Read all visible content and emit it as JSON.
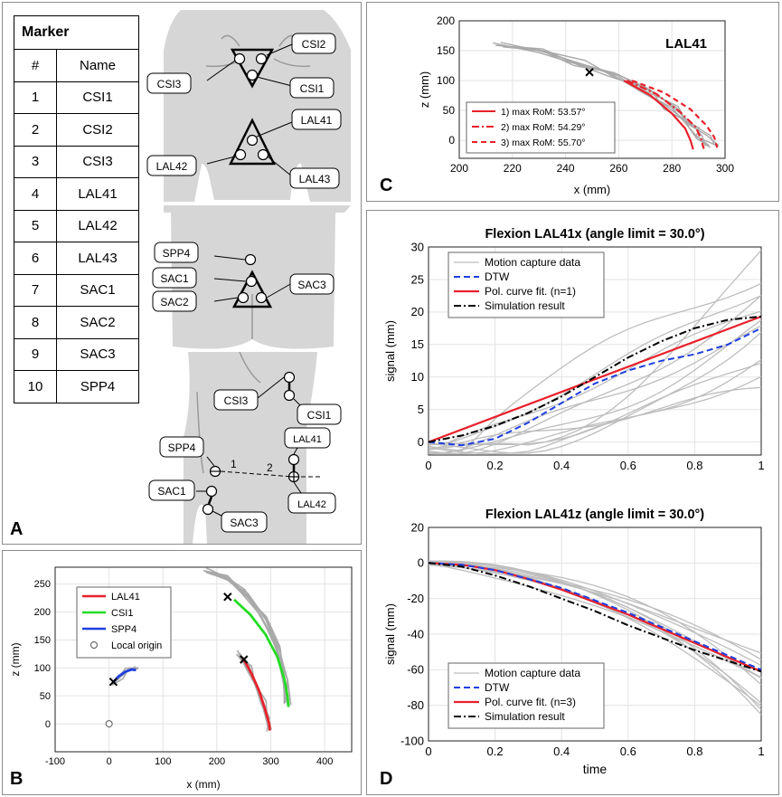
{
  "panel_letters": {
    "a": "A",
    "b": "B",
    "c": "C",
    "d": "D"
  },
  "marker_table": {
    "title": "Marker",
    "col_num": "#",
    "col_name": "Name",
    "rows": [
      {
        "num": "1",
        "name": "CSI1"
      },
      {
        "num": "2",
        "name": "CSI2"
      },
      {
        "num": "3",
        "name": "CSI3"
      },
      {
        "num": "4",
        "name": "LAL41"
      },
      {
        "num": "5",
        "name": "LAL42"
      },
      {
        "num": "6",
        "name": "LAL43"
      },
      {
        "num": "7",
        "name": "SAC1"
      },
      {
        "num": "8",
        "name": "SAC2"
      },
      {
        "num": "9",
        "name": "SAC3"
      },
      {
        "num": "10",
        "name": "SPP4"
      }
    ]
  },
  "body_labels": {
    "front_csi2": "CSI2",
    "front_csi3": "CSI3",
    "front_csi1": "CSI1",
    "front_lal41": "LAL41",
    "front_lal42": "LAL42",
    "front_lal43": "LAL43",
    "back_spp4": "SPP4",
    "back_sac1": "SAC1",
    "back_sac2": "SAC2",
    "back_sac3": "SAC3",
    "side_csi3": "CSI3",
    "side_csi1": "CSI1",
    "side_spp4": "SPP4",
    "side_lal41": "LAL41",
    "side_sac1": "SAC1",
    "side_lal42": "LAL42",
    "side_sac3": "SAC3",
    "line_1": "1",
    "line_2": "2"
  },
  "colors": {
    "red": "#e8202a",
    "green": "#22dd22",
    "blue": "#1f3fe0",
    "gray": "#a9a9a9",
    "skin": "#d6d6d6",
    "dtw": "#1f3fe0",
    "sim": "#000000"
  },
  "chart_data": [
    {
      "id": "B",
      "type": "line",
      "xlabel": "x (mm)",
      "ylabel": "z (mm)",
      "xlim": [
        -100,
        450
      ],
      "ylim": [
        -50,
        280
      ],
      "xticks": [
        -100,
        0,
        100,
        200,
        300,
        400
      ],
      "yticks": [
        0,
        50,
        100,
        150,
        200,
        250
      ],
      "legend": [
        "LAL41",
        "CSI1",
        "SPP4",
        "Local origin"
      ],
      "series": [
        {
          "name": "LAL41",
          "x": [
            250,
            264,
            278,
            288,
            294,
            297,
            298
          ],
          "z": [
            115,
            90,
            60,
            30,
            10,
            0,
            -12
          ]
        },
        {
          "name": "CSI1",
          "x": [
            232,
            262,
            290,
            312,
            325,
            331,
            333
          ],
          "z": [
            222,
            195,
            160,
            120,
            80,
            50,
            30
          ]
        },
        {
          "name": "SPP4",
          "x": [
            8,
            18,
            30,
            42,
            50
          ],
          "z": [
            75,
            85,
            93,
            97,
            96
          ]
        }
      ],
      "origin": [
        0,
        0
      ],
      "start_marks": [
        [
          250,
          115
        ],
        [
          220,
          227
        ],
        [
          8,
          75
        ]
      ]
    },
    {
      "id": "C",
      "type": "line",
      "title": "LAL41",
      "xlabel": "x (mm)",
      "ylabel": "z (mm)",
      "xlim": [
        200,
        300
      ],
      "ylim": [
        -30,
        200
      ],
      "xticks": [
        200,
        220,
        240,
        260,
        280,
        300
      ],
      "yticks": [
        0,
        50,
        100,
        150,
        200
      ],
      "legend": [
        "1) max RoM: 53.57°",
        "2) max RoM: 54.29°",
        "3) max RoM: 55.70°"
      ],
      "series": [
        {
          "name": "1) max RoM: 53.57°",
          "x": [
            262,
            272,
            280,
            285,
            287,
            288
          ],
          "z": [
            100,
            75,
            45,
            20,
            0,
            -15
          ]
        },
        {
          "name": "2) max RoM: 54.29°",
          "x": [
            263,
            274,
            283,
            289,
            291,
            292
          ],
          "z": [
            100,
            78,
            48,
            22,
            2,
            -14
          ]
        },
        {
          "name": "3) max RoM: 55.70°",
          "x": [
            265,
            277,
            287,
            293,
            296,
            297
          ],
          "z": [
            100,
            80,
            52,
            25,
            5,
            -12
          ]
        }
      ],
      "start_mark": [
        249,
        114
      ]
    },
    {
      "id": "D1",
      "type": "line",
      "title": "Flexion LAL41x (angle limit = 30.0°)",
      "xlabel": "",
      "ylabel": "signal (mm)",
      "xlim": [
        0,
        1
      ],
      "ylim": [
        -2,
        30
      ],
      "xticks": [
        0,
        0.2,
        0.4,
        0.6,
        0.8,
        1
      ],
      "yticks": [
        0,
        5,
        10,
        15,
        20,
        25,
        30
      ],
      "legend": [
        "Motion capture data",
        "DTW",
        "Pol. curve fit. (n=1)",
        "Simulation result"
      ],
      "series": [
        {
          "name": "Pol. curve fit. (n=1)",
          "x": [
            0,
            1
          ],
          "y": [
            0,
            19.3
          ]
        },
        {
          "name": "DTW",
          "x": [
            0,
            0.1,
            0.2,
            0.3,
            0.4,
            0.5,
            0.6,
            0.7,
            0.8,
            0.9,
            1.0
          ],
          "y": [
            0,
            -0.5,
            0.5,
            3,
            6,
            9,
            11,
            12.5,
            13.5,
            15,
            17.5
          ]
        },
        {
          "name": "Simulation result",
          "x": [
            0,
            0.1,
            0.2,
            0.3,
            0.4,
            0.5,
            0.6,
            0.7,
            0.8,
            0.9,
            1.0
          ],
          "y": [
            0,
            1,
            2.5,
            4.5,
            7,
            10,
            13,
            15.5,
            17.5,
            18.8,
            19.3
          ]
        }
      ]
    },
    {
      "id": "D2",
      "type": "line",
      "title": "Flexion LAL41z (angle limit = 30.0°)",
      "xlabel": "time",
      "ylabel": "signal (mm)",
      "xlim": [
        0,
        1
      ],
      "ylim": [
        -100,
        20
      ],
      "xticks": [
        0,
        0.2,
        0.4,
        0.6,
        0.8,
        1
      ],
      "yticks": [
        -100,
        -80,
        -60,
        -40,
        -20,
        0,
        20
      ],
      "legend": [
        "Motion capture data",
        "DTW",
        "Pol. curve fit. (n=3)",
        "Simulation result"
      ],
      "series": [
        {
          "name": "Pol. curve fit. (n=3)",
          "x": [
            0,
            0.1,
            0.2,
            0.3,
            0.4,
            0.5,
            0.6,
            0.7,
            0.8,
            0.9,
            1.0
          ],
          "y": [
            0,
            -1,
            -4,
            -9,
            -15,
            -22,
            -29,
            -37,
            -45,
            -53,
            -61
          ]
        },
        {
          "name": "DTW",
          "x": [
            0,
            0.1,
            0.2,
            0.3,
            0.4,
            0.5,
            0.6,
            0.7,
            0.8,
            0.9,
            1.0
          ],
          "y": [
            0,
            -1,
            -4,
            -9,
            -14,
            -21,
            -28,
            -36,
            -44,
            -52,
            -60
          ]
        },
        {
          "name": "Simulation result",
          "x": [
            0,
            0.1,
            0.2,
            0.3,
            0.4,
            0.5,
            0.6,
            0.7,
            0.8,
            0.9,
            1.0
          ],
          "y": [
            0,
            -2,
            -7,
            -13,
            -20,
            -27,
            -35,
            -42,
            -49,
            -55,
            -61
          ]
        }
      ]
    }
  ]
}
